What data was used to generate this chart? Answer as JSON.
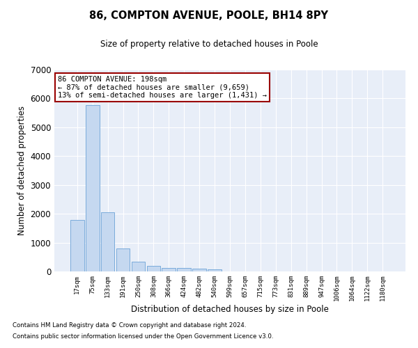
{
  "title": "86, COMPTON AVENUE, POOLE, BH14 8PY",
  "subtitle": "Size of property relative to detached houses in Poole",
  "xlabel": "Distribution of detached houses by size in Poole",
  "ylabel": "Number of detached properties",
  "bar_color": "#c5d8f0",
  "bar_edge_color": "#7aabdb",
  "background_color": "#e8eef8",
  "grid_color": "#ffffff",
  "categories": [
    "17sqm",
    "75sqm",
    "133sqm",
    "191sqm",
    "250sqm",
    "308sqm",
    "366sqm",
    "424sqm",
    "482sqm",
    "540sqm",
    "599sqm",
    "657sqm",
    "715sqm",
    "773sqm",
    "831sqm",
    "889sqm",
    "947sqm",
    "1006sqm",
    "1064sqm",
    "1122sqm",
    "1180sqm"
  ],
  "values": [
    1780,
    5780,
    2060,
    800,
    340,
    185,
    120,
    110,
    100,
    80,
    5,
    2,
    2,
    1,
    1,
    1,
    1,
    1,
    1,
    1,
    1
  ],
  "ylim": [
    0,
    7000
  ],
  "yticks": [
    0,
    1000,
    2000,
    3000,
    4000,
    5000,
    6000,
    7000
  ],
  "annotation_line1": "86 COMPTON AVENUE: 198sqm",
  "annotation_line2": "← 87% of detached houses are smaller (9,659)",
  "annotation_line3": "13% of semi-detached houses are larger (1,431) →",
  "annotation_box_color": "#ffffff",
  "annotation_box_edge_color": "#990000",
  "footer_line1": "Contains HM Land Registry data © Crown copyright and database right 2024.",
  "footer_line2": "Contains public sector information licensed under the Open Government Licence v3.0."
}
